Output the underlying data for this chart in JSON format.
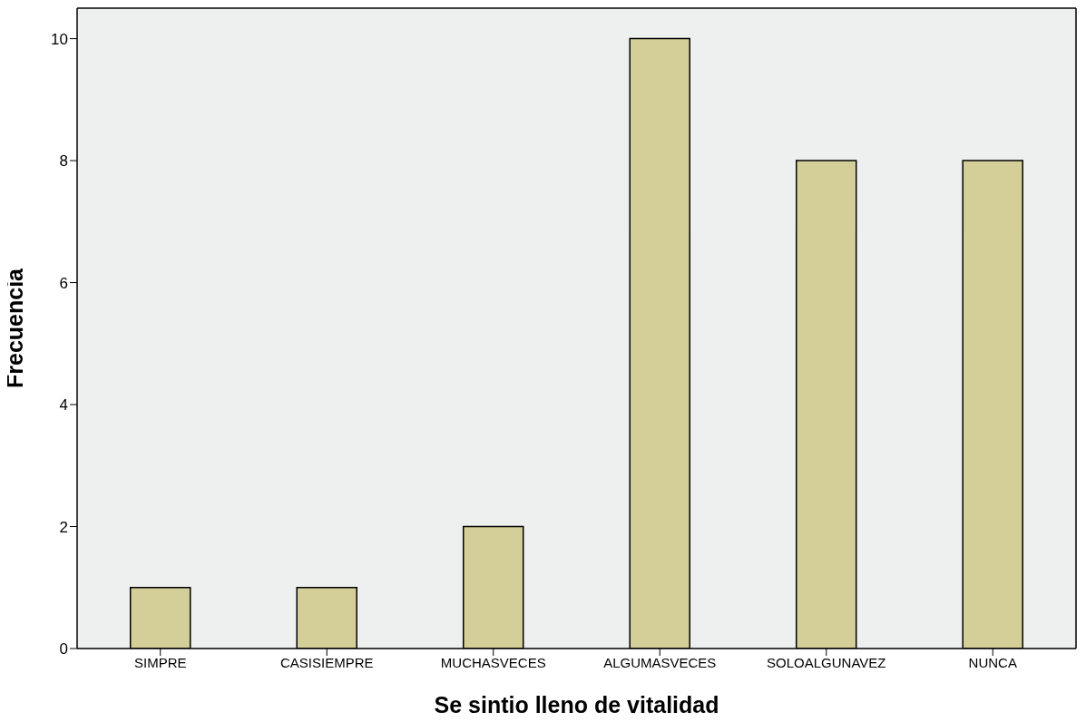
{
  "chart_data": {
    "type": "bar",
    "xlabel": "Se sintio lleno de vitalidad",
    "ylabel": "Frecuencia",
    "categories": [
      "SIMPRE",
      "CASISIEMPRE",
      "MUCHASVECES",
      "ALGUMASVECES",
      "SOLOALGUNAVEZ",
      "NUNCA"
    ],
    "values": [
      1,
      1,
      2,
      10,
      8,
      8
    ],
    "color": "#d4cf98",
    "ylim": [
      0,
      10.5
    ],
    "yticks": [
      0,
      2,
      4,
      6,
      8,
      10
    ],
    "grid": false,
    "legend": false
  }
}
